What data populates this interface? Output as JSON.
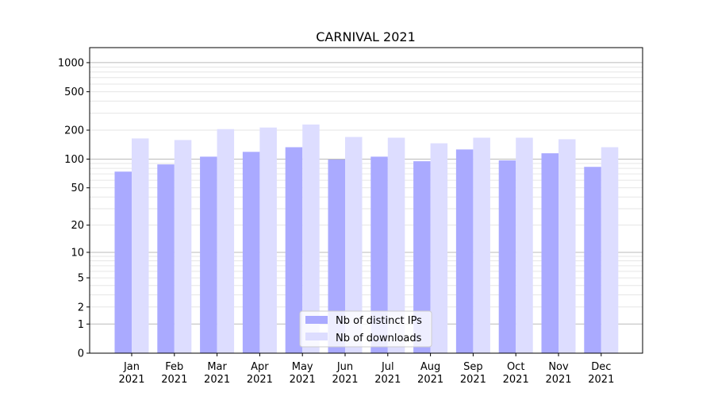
{
  "chart_data": {
    "type": "bar",
    "title": "CARNIVAL 2021",
    "xlabel": "",
    "ylabel": "",
    "yscale": "log(1+y)",
    "ylim": [
      0,
      1430
    ],
    "yticks": [
      0,
      1,
      2,
      5,
      10,
      20,
      50,
      100,
      200,
      500,
      1000
    ],
    "ytick_labels": [
      "0",
      "1",
      "2",
      "5",
      "10",
      "20",
      "50",
      "100",
      "200",
      "500",
      "1000"
    ],
    "grid": true,
    "categories": [
      "Jan",
      "Feb",
      "Mar",
      "Apr",
      "May",
      "Jun",
      "Jul",
      "Aug",
      "Sep",
      "Oct",
      "Nov",
      "Dec"
    ],
    "category_year": "2021",
    "series": [
      {
        "name": "Nb of distinct IPs",
        "color": "#aaaaff",
        "values": [
          74,
          88,
          106,
          119,
          133,
          99,
          106,
          95,
          126,
          97,
          115,
          83
        ]
      },
      {
        "name": "Nb of downloads",
        "color": "#ddddff",
        "values": [
          164,
          158,
          205,
          213,
          229,
          170,
          167,
          146,
          167,
          167,
          161,
          133
        ]
      }
    ],
    "legend_position": "lower center"
  }
}
